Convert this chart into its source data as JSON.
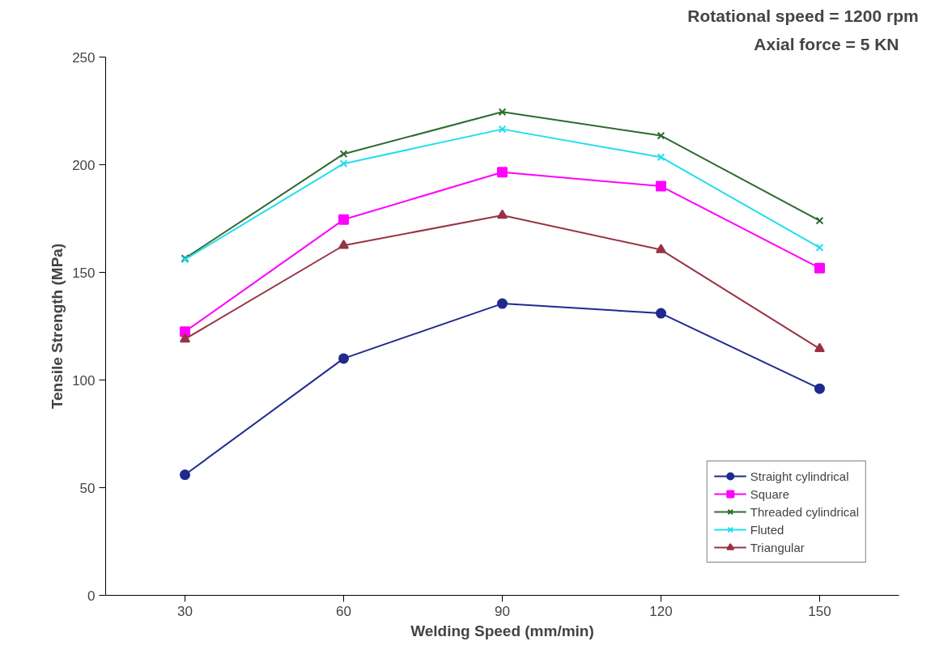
{
  "chart_data": {
    "type": "line",
    "xlabel": "Welding Speed (mm/min)",
    "ylabel": "Tensile Strength (MPa)",
    "annotations": [
      "Rotational speed  = 1200 rpm",
      "Axial force = 5 KN"
    ],
    "categories": [
      "30",
      "60",
      "90",
      "120",
      "150"
    ],
    "ylim": [
      0,
      250
    ],
    "yticks": [
      0,
      50,
      100,
      150,
      200,
      250
    ],
    "grid": false,
    "legend": "bottom right",
    "series": [
      {
        "name": "Straight cylindrical",
        "color": "#1f2a8f",
        "marker": "circle",
        "values": [
          56,
          110,
          135.5,
          131,
          96
        ]
      },
      {
        "name": "Square",
        "color": "#ff00ff",
        "marker": "square",
        "values": [
          122.5,
          174.5,
          196.5,
          190,
          152
        ]
      },
      {
        "name": "Threaded cylindrical",
        "color": "#2e6b2e",
        "marker": "cross",
        "values": [
          156.5,
          205,
          224.5,
          213.5,
          174
        ]
      },
      {
        "name": "Fluted",
        "color": "#22ddee",
        "marker": "cross",
        "values": [
          156,
          200.5,
          216.5,
          203.5,
          161.5
        ]
      },
      {
        "name": "Triangular",
        "color": "#993344",
        "marker": "triangle",
        "values": [
          119,
          162.5,
          176.5,
          160.5,
          114.5
        ]
      }
    ]
  }
}
